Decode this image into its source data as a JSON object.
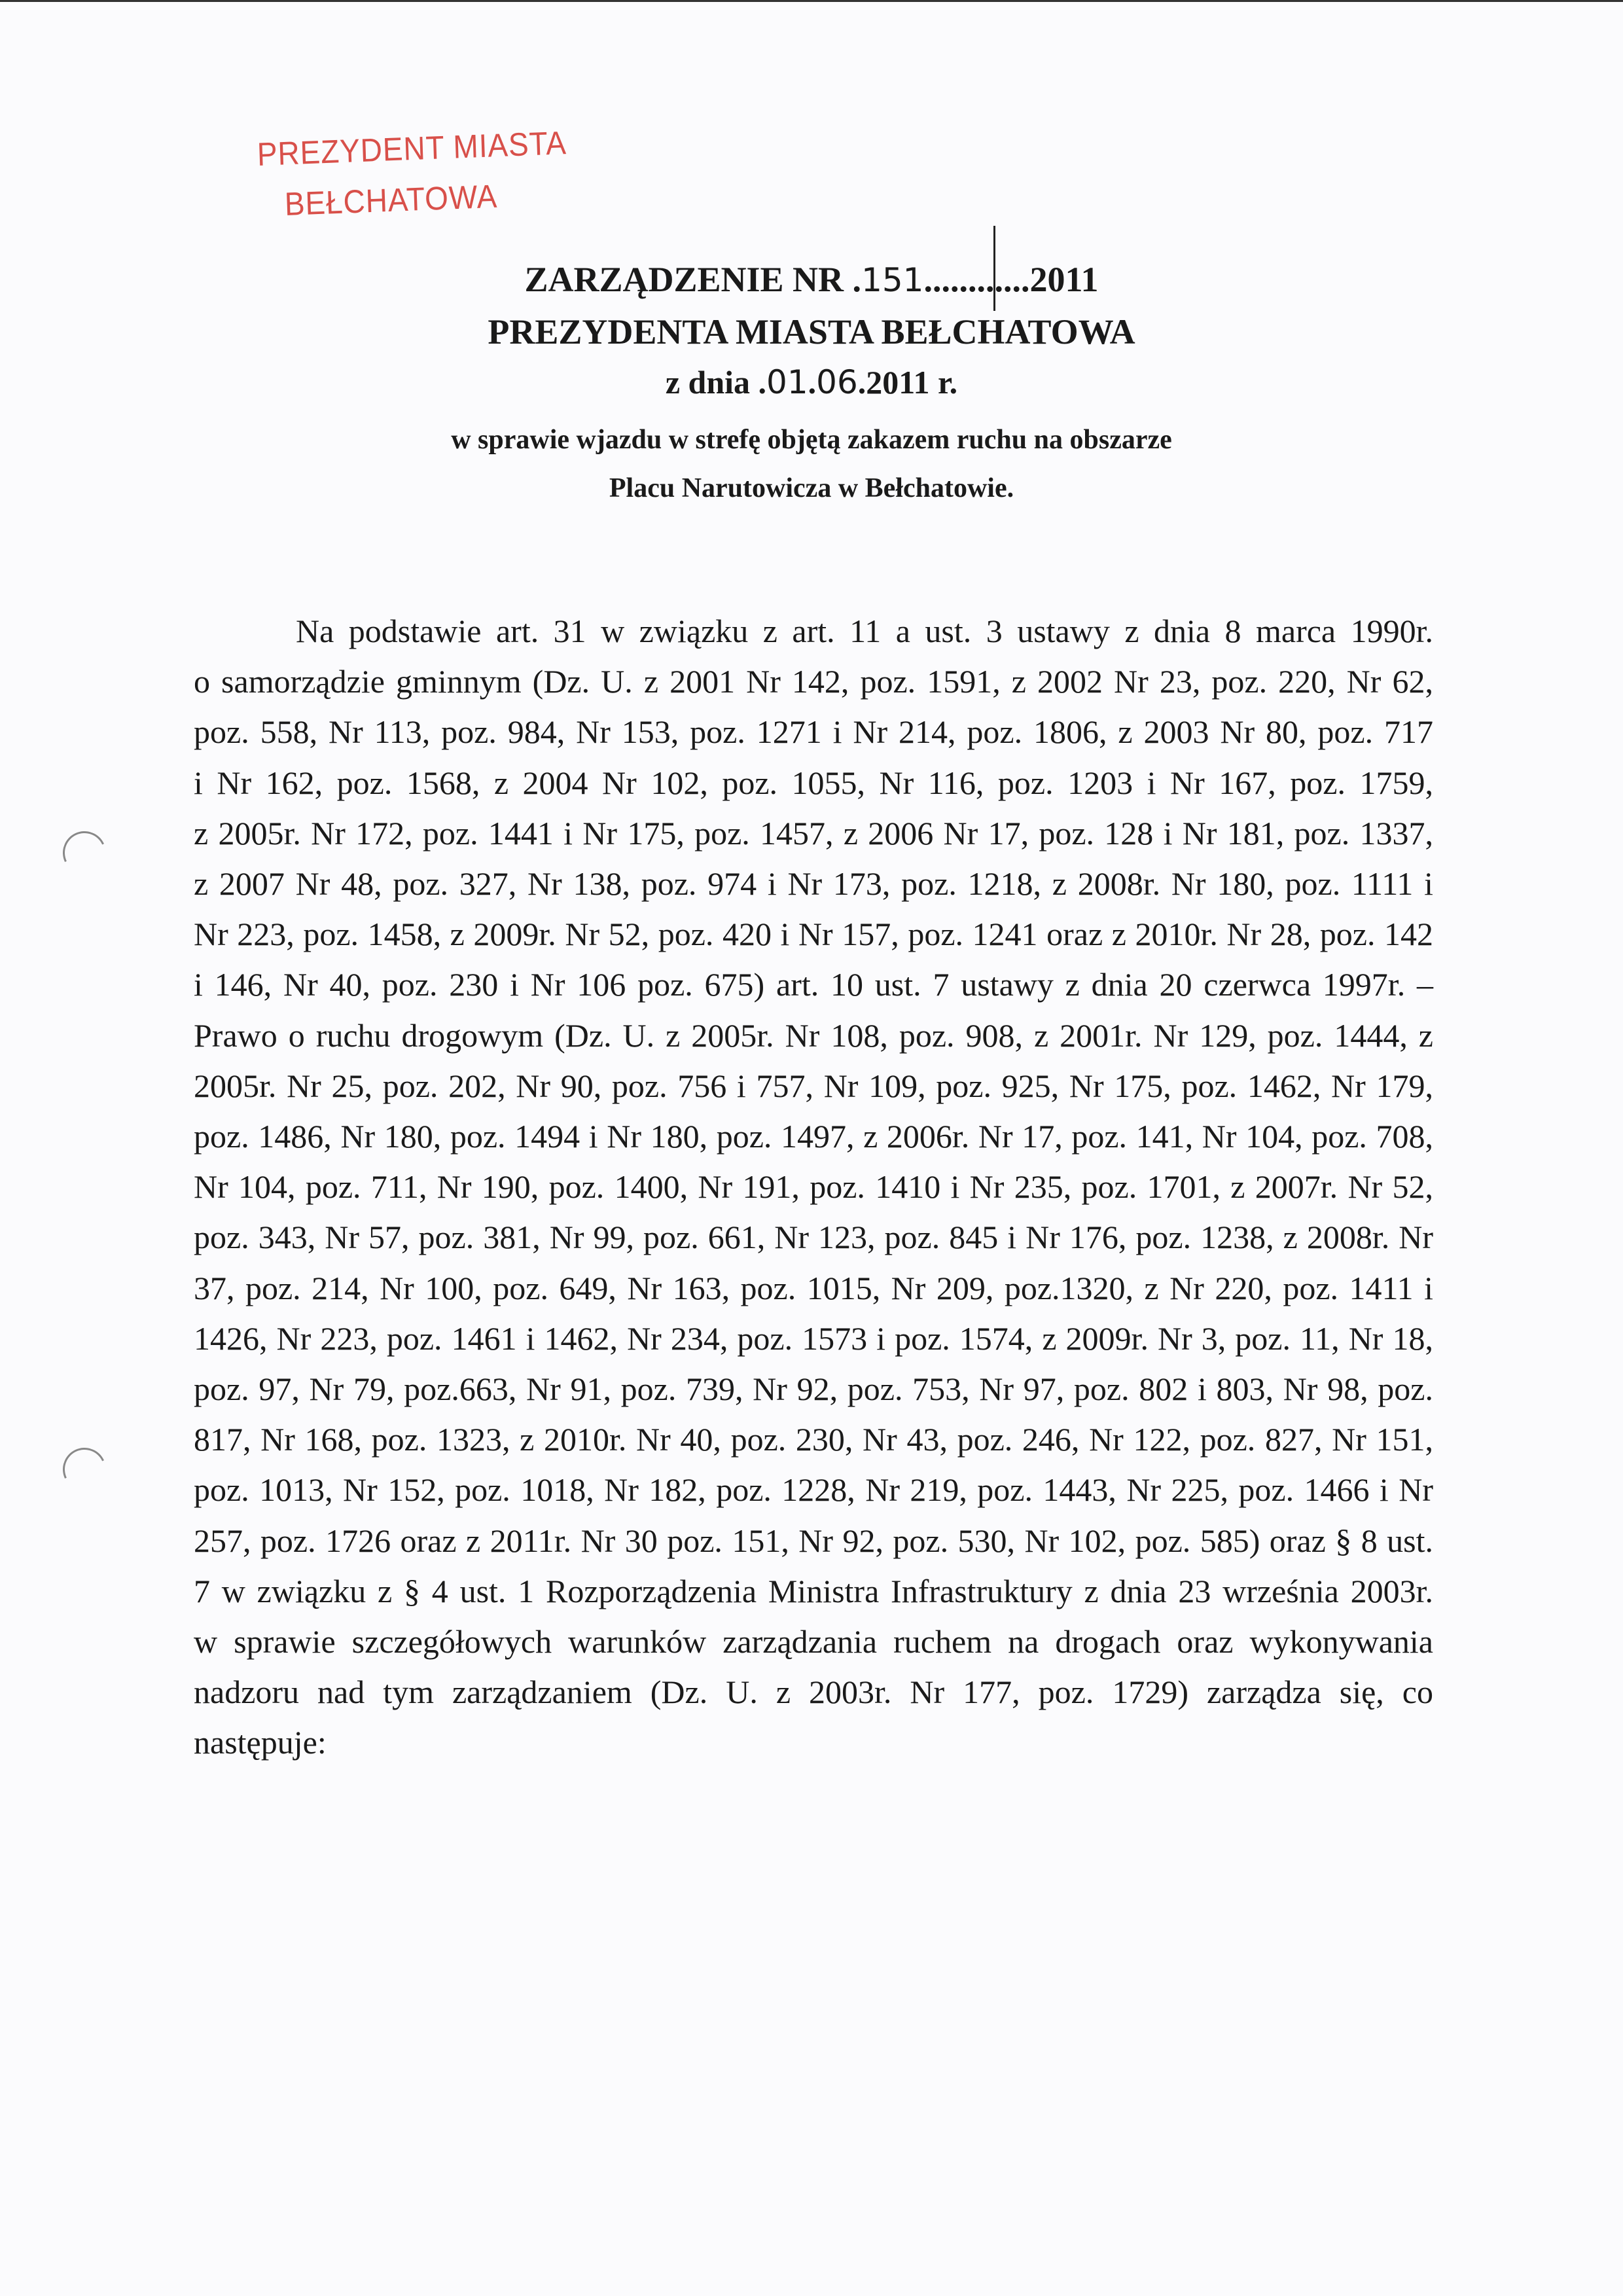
{
  "stamp": {
    "line1": "PREZYDENT MIASTA",
    "line2": "BEŁCHATOWA"
  },
  "header": {
    "title_prefix": "ZARZĄDZENIE NR .",
    "number_handwritten": "151",
    "title_dots": "...........",
    "title_suffix": ".2011",
    "issuer": "PREZYDENTA MIASTA BEŁCHATOWA",
    "date_prefix": "z dnia .",
    "date_day": "01",
    "date_sep": ".",
    "date_month": "06",
    "date_suffix": ".2011 r."
  },
  "subject": {
    "line1": "w sprawie wjazdu w strefę objętą zakazem ruchu na obszarze",
    "line2": "Placu Narutowicza w Bełchatowie."
  },
  "body_lines": [
    "Na podstawie art. 31 w związku z art. 11 a ust. 3 ustawy z dnia 8 marca 1990r.",
    "o samorządzie gminnym (Dz. U. z 2001 Nr 142, poz. 1591, z 2002 Nr 23, poz. 220, Nr 62,",
    "poz. 558, Nr 113, poz. 984, Nr 153, poz. 1271 i Nr 214, poz. 1806, z 2003 Nr 80, poz. 717",
    "i Nr 162, poz. 1568, z 2004 Nr 102, poz. 1055, Nr 116, poz. 1203 i Nr 167, poz. 1759,",
    "z 2005r. Nr 172, poz. 1441 i Nr 175, poz. 1457, z 2006 Nr 17, poz. 128 i Nr 181, poz. 1337,",
    "z 2007 Nr 48, poz. 327, Nr 138, poz. 974 i Nr 173, poz. 1218, z 2008r. Nr 180, poz. 1111 i",
    "Nr 223, poz. 1458, z 2009r. Nr 52, poz. 420 i Nr 157, poz. 1241 oraz z 2010r. Nr 28, poz. 142",
    "i 146, Nr 40, poz. 230 i Nr 106 poz. 675) art. 10 ust. 7 ustawy z dnia 20 czerwca 1997r. –",
    "Prawo o ruchu drogowym (Dz. U. z 2005r. Nr 108, poz. 908, z 2001r. Nr 129, poz. 1444, z",
    "2005r. Nr 25, poz. 202, Nr 90, poz. 756 i 757, Nr 109, poz. 925, Nr 175, poz. 1462, Nr 179,",
    "poz. 1486, Nr 180, poz. 1494 i Nr 180, poz. 1497, z 2006r. Nr 17, poz. 141, Nr 104, poz. 708,",
    "Nr 104, poz. 711, Nr 190, poz. 1400, Nr 191, poz. 1410 i Nr 235, poz. 1701, z 2007r. Nr 52,",
    "poz. 343, Nr 57, poz. 381, Nr 99, poz. 661, Nr 123, poz. 845 i Nr 176, poz. 1238, z 2008r. Nr",
    "37, poz. 214, Nr 100, poz. 649, Nr 163, poz. 1015, Nr 209, poz.1320, z Nr 220, poz. 1411 i",
    "1426, Nr 223, poz. 1461 i 1462, Nr 234, poz. 1573 i poz. 1574, z 2009r. Nr 3, poz. 11, Nr 18,",
    "poz. 97, Nr 79, poz.663, Nr 91, poz. 739, Nr 92, poz. 753, Nr 97, poz. 802 i 803, Nr 98, poz.",
    "817, Nr 168, poz. 1323, z 2010r. Nr 40, poz. 230, Nr 43, poz. 246, Nr 122, poz. 827, Nr 151,",
    "poz. 1013, Nr 152, poz. 1018, Nr 182, poz. 1228, Nr 219, poz. 1443, Nr 225, poz. 1466 i Nr",
    "257, poz. 1726 oraz z 2011r. Nr 30 poz. 151, Nr 92, poz. 530, Nr 102, poz. 585) oraz § 8 ust.",
    "7 w związku z § 4 ust. 1 Rozporządzenia Ministra Infrastruktury z dnia 23 września 2003r.",
    "w sprawie szczegółowych warunków zarządzania ruchem na drogach oraz wykonywania",
    "nadzoru nad tym zarządzaniem (Dz. U. z 2003r. Nr 177, poz. 1729) zarządza się, co",
    "następuje:"
  ],
  "colors": {
    "stamp": "#d8504a",
    "text": "#1a1a1a",
    "paper": "#fbfbfd"
  }
}
